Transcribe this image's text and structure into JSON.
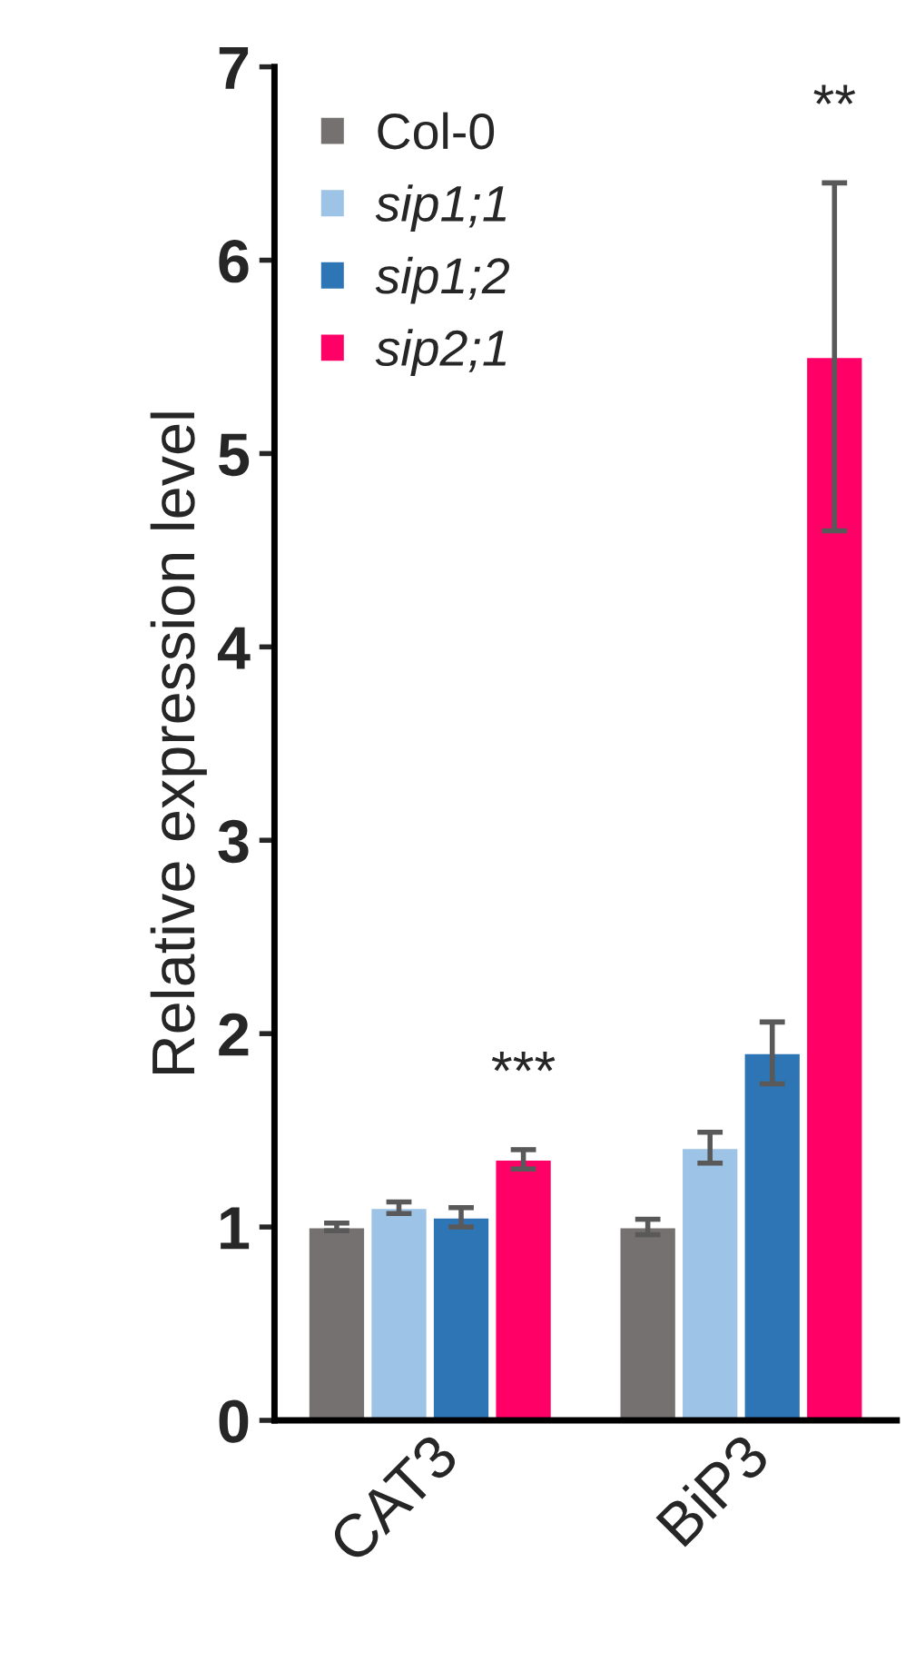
{
  "chart_data": {
    "type": "bar",
    "ylabel": "Relative expression level",
    "categories": [
      "CAT3",
      "BiP3"
    ],
    "series": [
      {
        "name": "Col-0",
        "color": "#767171",
        "values": [
          1.0,
          1.0
        ],
        "errors": [
          0.02,
          0.04
        ]
      },
      {
        "name": "sip1;1",
        "color": "#9dc3e6",
        "values": [
          1.1,
          1.41
        ],
        "errors": [
          0.03,
          0.08
        ]
      },
      {
        "name": "sip1;2",
        "color": "#2e75b6",
        "values": [
          1.05,
          1.9
        ],
        "errors": [
          0.05,
          0.16
        ]
      },
      {
        "name": "sip2;1",
        "color": "#ff0066",
        "values": [
          1.35,
          5.5
        ],
        "errors": [
          0.05,
          0.9
        ]
      }
    ],
    "annotations": [
      "***",
      "**"
    ],
    "ylim": [
      0,
      7
    ],
    "yticks": [
      0,
      1,
      2,
      3,
      4,
      5,
      6,
      7
    ],
    "grid": false,
    "legend": "top left"
  }
}
